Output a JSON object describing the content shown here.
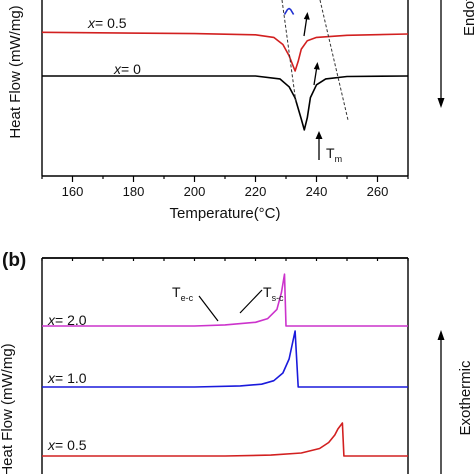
{
  "chart_data": [
    {
      "panel": "a",
      "type": "line",
      "xlabel": "Temperature(°C)",
      "ylabel": "Heat Flow (mW/mg)",
      "xlim": [
        150,
        270
      ],
      "xticks": [
        160,
        180,
        200,
        220,
        240,
        260
      ],
      "side_label": "Endotherm",
      "peak_label": {
        "main": "T",
        "sub": "m"
      },
      "series": [
        {
          "name": "x= 0",
          "x_var": "x",
          "x_eq": "= 0",
          "color": "#000000",
          "x": [
            150,
            220,
            228,
            231,
            233,
            235,
            236,
            237,
            238,
            240,
            243,
            250,
            270
          ],
          "y": [
            0,
            0,
            -0.6,
            -2.2,
            -4.5,
            -8.8,
            -11,
            -8.5,
            -4.4,
            -1.8,
            -0.6,
            -0.1,
            0
          ]
        },
        {
          "name": "x= 0.5",
          "x_var": "x",
          "x_eq": "= 0.5",
          "color": "#d22020",
          "x": [
            150,
            200,
            220,
            226,
            229,
            231,
            233,
            234,
            235,
            237,
            240,
            250,
            270
          ],
          "y": [
            0.4,
            0.1,
            -0.2,
            -0.8,
            -2.5,
            -5.2,
            -8.8,
            -6.5,
            -3.6,
            -1.6,
            -0.8,
            -0.3,
            0
          ]
        },
        {
          "name": "x= 1.0",
          "color": "#2030d0",
          "x": [
            229.5,
            230.5,
            231,
            231.5,
            232.5
          ],
          "y": [
            14.5,
            9.5,
            8.5,
            9.5,
            14.5
          ]
        }
      ]
    },
    {
      "panel": "b",
      "panel_label": "(b)",
      "type": "line",
      "ylabel": "Heat Flow (mW/mg)",
      "xlim": [
        150,
        270
      ],
      "side_label": "Exothermic",
      "annotations": [
        {
          "main": "T",
          "sub": "e-c"
        },
        {
          "main": "T",
          "sub": "s-c"
        }
      ],
      "series": [
        {
          "name": "x= 2.0",
          "x_var": "x",
          "x_eq": "= 2.0",
          "color": "#cc33cc",
          "x": [
            150,
            200,
            210,
            220,
            224,
            227,
            228.5,
            229.5,
            230,
            270
          ],
          "y": [
            0,
            0,
            0.3,
            1,
            2,
            4.5,
            9,
            14,
            0,
            0
          ]
        },
        {
          "name": "x= 1.0",
          "x_var": "x",
          "x_eq": "= 1.0",
          "color": "#1a1adc",
          "x": [
            150,
            200,
            215,
            222,
            226,
            229,
            231,
            232,
            233,
            234,
            270
          ],
          "y": [
            0,
            0,
            0.3,
            0.8,
            1.8,
            4,
            8,
            12,
            16,
            0,
            0
          ]
        },
        {
          "name": "x= 0.5",
          "x_var": "x",
          "x_eq": "= 0.5",
          "color": "#d22020",
          "x": [
            150,
            210,
            225,
            235,
            241,
            244,
            246,
            247,
            248.5,
            249,
            270
          ],
          "y": [
            0,
            0,
            0.3,
            1,
            2.5,
            4.5,
            7,
            9,
            11,
            0,
            0
          ]
        }
      ]
    }
  ]
}
